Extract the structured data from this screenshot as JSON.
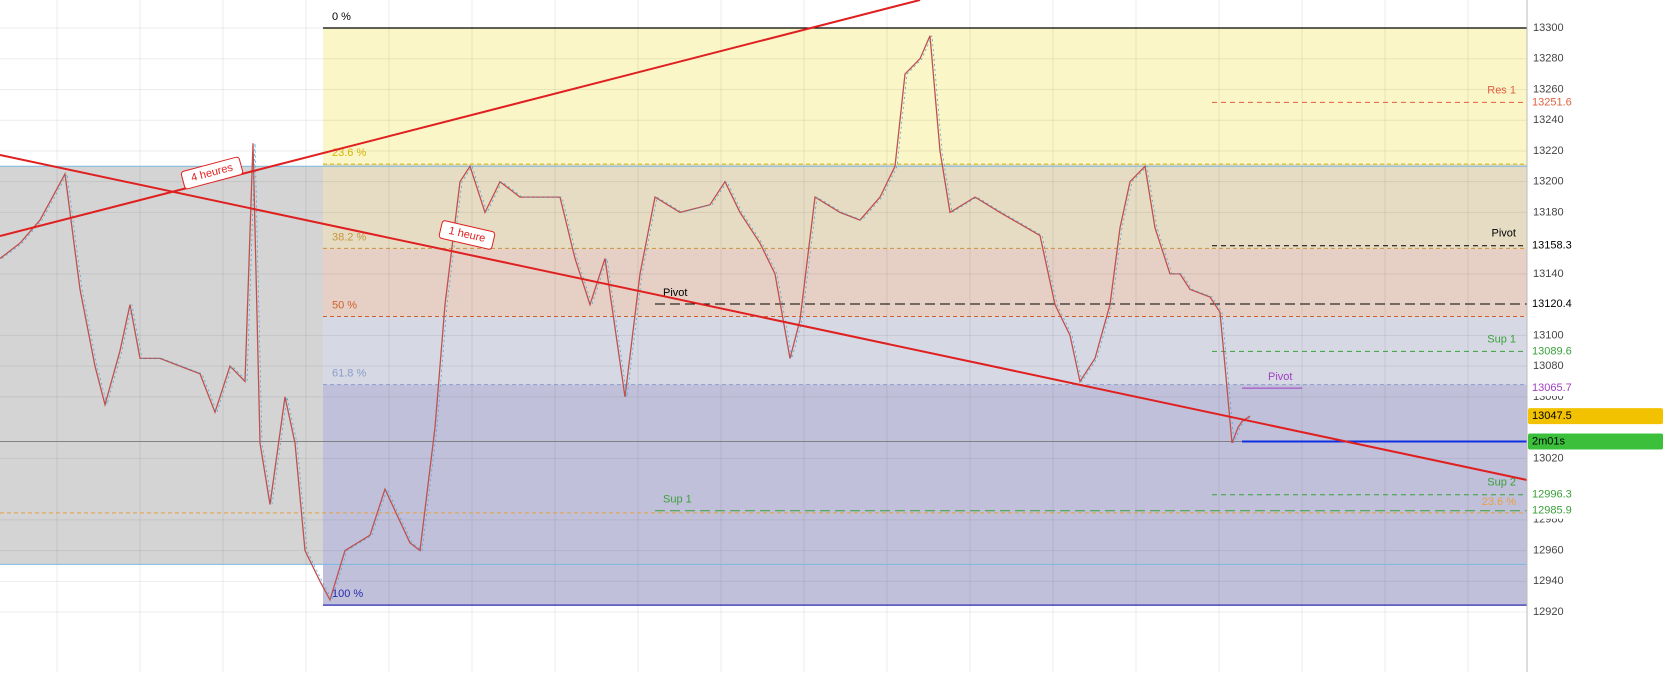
{
  "chart_data": {
    "type": "line",
    "ylim": [
      12881,
      13318.2
    ],
    "xlim": [
      0,
      305.4
    ],
    "yticks": [
      12920,
      12940,
      12960,
      12980,
      13020,
      13060,
      13080,
      13100,
      13140,
      13180,
      13200,
      13220,
      13240,
      13260,
      13280,
      13300
    ],
    "grid": true,
    "series": [
      {
        "color": "#c0504d",
        "x": [
          0,
          4,
          8,
          13,
          16,
          19,
          21,
          24,
          26,
          28,
          32,
          36,
          40,
          43,
          46,
          49,
          50.6,
          52,
          54,
          57,
          59,
          61,
          64,
          66,
          69,
          74,
          77,
          82,
          84,
          87,
          89,
          92,
          94,
          97,
          100,
          104,
          109,
          112,
          115,
          118,
          121,
          125,
          128,
          131,
          136,
          142,
          145,
          148,
          152,
          155,
          158,
          160,
          163,
          168,
          172,
          176,
          179,
          181,
          184,
          186,
          188,
          190,
          195,
          200,
          208,
          211,
          214,
          216,
          219,
          222,
          224,
          226,
          229,
          231,
          234,
          236,
          238,
          242,
          244,
          245,
          246.4,
          247.6,
          248.4,
          250
        ],
        "values": [
          13150,
          13160,
          13175,
          13205,
          13130,
          13080,
          13055,
          13090,
          13120,
          13085,
          13085,
          13080,
          13075,
          13050,
          13080,
          13070,
          13225,
          13030,
          12990,
          13060,
          13030,
          12960,
          12940,
          12928,
          12960,
          12970,
          13000,
          12965,
          12960,
          13040,
          13120,
          13200,
          13210,
          13180,
          13200,
          13190,
          13190,
          13190,
          13150,
          13120,
          13150,
          13060,
          13140,
          13190,
          13180,
          13185,
          13200,
          13180,
          13160,
          13140,
          13085,
          13110,
          13190,
          13180,
          13175,
          13190,
          13210,
          13270,
          13280,
          13295,
          13220,
          13180,
          13190,
          13180,
          13165,
          13120,
          13100,
          13070,
          13085,
          13120,
          13170,
          13200,
          13210,
          13170,
          13140,
          13140,
          13130,
          13125,
          13115,
          13080,
          13030,
          13040,
          13044,
          13047.5
        ]
      }
    ],
    "fib_levels": [
      {
        "label": "0 %",
        "value": 13300,
        "color": "#000000",
        "zone": "#fbf6c8"
      },
      {
        "label": "23.6 %",
        "value": 13211.4,
        "color": "#d4b400",
        "zone": "#e5dcc3"
      },
      {
        "label": "38.2 %",
        "value": 13156.6,
        "color": "#c8963c",
        "zone": "#e6cfc4"
      },
      {
        "label": "50 %",
        "value": 13112.3,
        "color": "#d0602c",
        "zone": "#d6d9e3"
      },
      {
        "label": "61.8 %",
        "value": 13068,
        "color": "#8a9ccc",
        "zone": "#c0c0da"
      },
      {
        "label": "100 %",
        "value": 12924.5,
        "color": "#2a2ab0"
      }
    ],
    "left_box": {
      "top": 13210,
      "bottom": 12951,
      "color": "#d4d4d4",
      "below_color": "#dcdcf7"
    },
    "fib_extra": {
      "label": "23.6 %",
      "value": 12984.5,
      "color": "#e8a040"
    },
    "pivots_left": [
      {
        "name": "Pivot",
        "value": 13120.4,
        "color": "#000000"
      },
      {
        "name": "Sup 1",
        "value": 12985.9,
        "color": "#3aa03a"
      }
    ],
    "pivots_right": [
      {
        "name": "Res 1",
        "value": 13251.6,
        "color": "#e06040"
      },
      {
        "name": "Pivot",
        "value": 13158.3,
        "color": "#000000"
      },
      {
        "name": "Sup 1",
        "value": 13089.6,
        "color": "#3aa03a"
      },
      {
        "name": "Sup 2",
        "value": 12996.3,
        "color": "#3aa03a"
      }
    ],
    "pivot_short": {
      "name": "Pivot",
      "value": 13065.7,
      "color": "#a040c0"
    },
    "current_price": 13047.5,
    "current_line": 13031,
    "timer": "2m01s",
    "trendline_labels": [
      "4 heures",
      "1 heure"
    ]
  }
}
